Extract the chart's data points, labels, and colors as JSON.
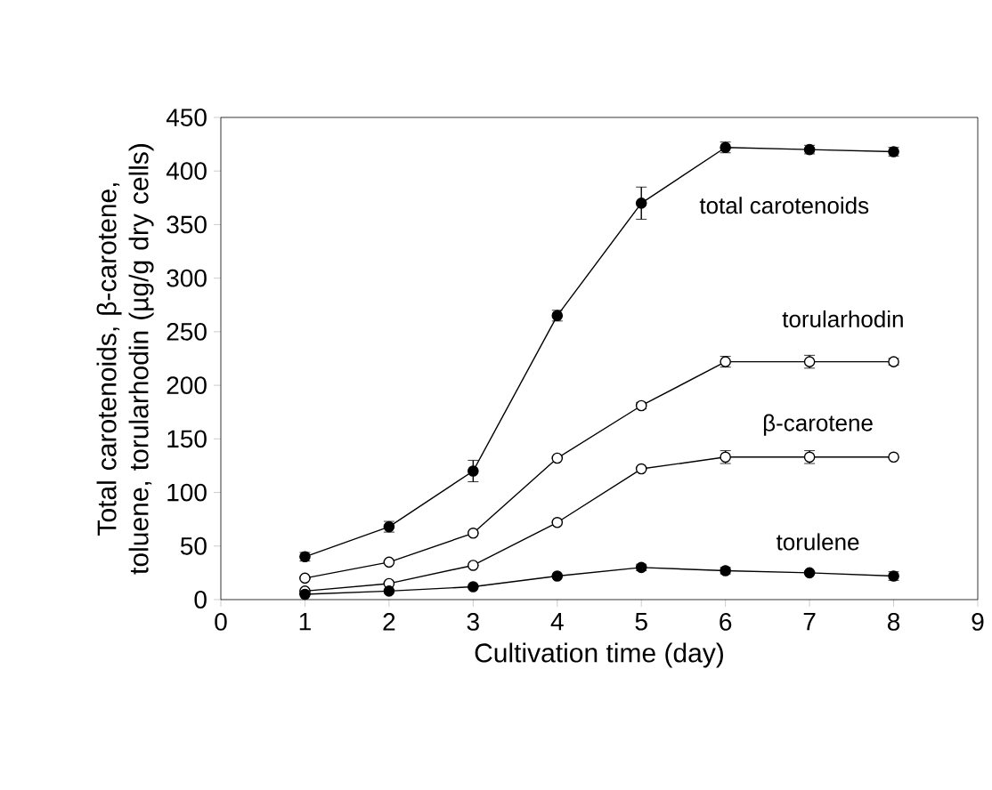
{
  "chart_data": {
    "type": "line",
    "xlabel": "Cultivation time (day)",
    "ylabel": "Total carotenoids, β-carotene, toluene, torularhodin (µg/g dry cells)",
    "x": [
      1,
      2,
      3,
      4,
      5,
      6,
      7,
      8
    ],
    "xlim": [
      0,
      9
    ],
    "xticks": [
      0,
      1,
      2,
      3,
      4,
      5,
      6,
      7,
      8,
      9
    ],
    "ylim": [
      0,
      450
    ],
    "yticks": [
      0,
      50,
      100,
      150,
      200,
      250,
      300,
      350,
      400,
      450
    ],
    "marker": "circle",
    "grid": false,
    "series": [
      {
        "name": "total carotenoids",
        "color": "#000000",
        "values": [
          40,
          68,
          120,
          265,
          370,
          422,
          420,
          418
        ],
        "errors": [
          4,
          5,
          10,
          5,
          15,
          5,
          4,
          4
        ]
      },
      {
        "name": "torularhodin",
        "color": "#000000",
        "values": [
          20,
          35,
          62,
          132,
          181,
          222,
          222,
          222
        ],
        "errors": [
          null,
          null,
          null,
          null,
          3,
          5,
          6,
          3
        ]
      },
      {
        "name": "β-carotene",
        "color": "#000000",
        "values": [
          8,
          15,
          32,
          72,
          122,
          133,
          133,
          133
        ],
        "errors": [
          null,
          null,
          null,
          null,
          null,
          6,
          6,
          null
        ]
      },
      {
        "name": "torulene",
        "color": "#000000",
        "values": [
          5,
          8,
          12,
          22,
          30,
          27,
          25,
          22
        ],
        "errors": [
          null,
          null,
          null,
          null,
          3,
          3,
          null,
          4
        ]
      }
    ]
  }
}
